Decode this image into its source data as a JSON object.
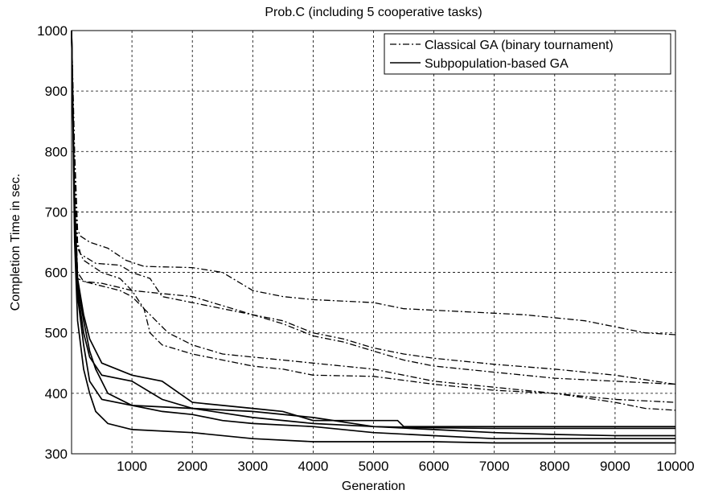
{
  "chart_data": {
    "type": "line",
    "title": "Prob.C (including 5 cooperative tasks)",
    "xlabel": "Generation",
    "ylabel": "Completion Time in sec.",
    "xlim": [
      0,
      10000
    ],
    "ylim": [
      300,
      1000
    ],
    "xticks": [
      1000,
      2000,
      3000,
      4000,
      5000,
      6000,
      7000,
      8000,
      9000,
      10000
    ],
    "yticks": [
      300,
      400,
      500,
      600,
      700,
      800,
      900,
      1000
    ],
    "grid": true,
    "legend_position": "top-right",
    "legend": [
      {
        "label": "Classical GA (binary tournament)",
        "style": "dashdot"
      },
      {
        "label": "Subpopulation-based GA",
        "style": "solid"
      }
    ],
    "series": [
      {
        "group": "Classical GA (binary tournament)",
        "style": "dashdot",
        "points": [
          [
            0,
            1000
          ],
          [
            50,
            800
          ],
          [
            100,
            670
          ],
          [
            150,
            660
          ],
          [
            300,
            650
          ],
          [
            600,
            640
          ],
          [
            900,
            620
          ],
          [
            1200,
            610
          ],
          [
            2000,
            608
          ],
          [
            2500,
            600
          ],
          [
            3000,
            570
          ],
          [
            3500,
            560
          ],
          [
            4000,
            555
          ],
          [
            5000,
            550
          ],
          [
            5500,
            540
          ],
          [
            6500,
            535
          ],
          [
            7500,
            530
          ],
          [
            8500,
            520
          ],
          [
            9500,
            500
          ],
          [
            10000,
            497
          ]
        ]
      },
      {
        "group": "Classical GA (binary tournament)",
        "style": "dashdot",
        "points": [
          [
            0,
            1000
          ],
          [
            50,
            780
          ],
          [
            100,
            650
          ],
          [
            150,
            630
          ],
          [
            400,
            615
          ],
          [
            800,
            612
          ],
          [
            1000,
            600
          ],
          [
            1300,
            590
          ],
          [
            1500,
            560
          ],
          [
            2000,
            550
          ],
          [
            2500,
            540
          ],
          [
            3000,
            530
          ],
          [
            3500,
            520
          ],
          [
            4000,
            500
          ],
          [
            4500,
            490
          ],
          [
            5000,
            475
          ],
          [
            5500,
            465
          ],
          [
            6000,
            458
          ],
          [
            7000,
            448
          ],
          [
            8000,
            440
          ],
          [
            9000,
            430
          ],
          [
            10000,
            415
          ]
        ]
      },
      {
        "group": "Classical GA (binary tournament)",
        "style": "dashdot",
        "points": [
          [
            0,
            1000
          ],
          [
            50,
            760
          ],
          [
            100,
            640
          ],
          [
            200,
            620
          ],
          [
            500,
            600
          ],
          [
            800,
            590
          ],
          [
            1000,
            570
          ],
          [
            1500,
            565
          ],
          [
            2000,
            560
          ],
          [
            2500,
            545
          ],
          [
            3000,
            530
          ],
          [
            3500,
            515
          ],
          [
            4000,
            495
          ],
          [
            4500,
            485
          ],
          [
            5000,
            470
          ],
          [
            5500,
            455
          ],
          [
            6000,
            445
          ],
          [
            7000,
            435
          ],
          [
            8000,
            425
          ],
          [
            9000,
            420
          ],
          [
            10000,
            415
          ]
        ]
      },
      {
        "group": "Classical GA (binary tournament)",
        "style": "dashdot",
        "points": [
          [
            0,
            1000
          ],
          [
            50,
            740
          ],
          [
            100,
            600
          ],
          [
            200,
            585
          ],
          [
            500,
            582
          ],
          [
            800,
            575
          ],
          [
            1000,
            570
          ],
          [
            1200,
            540
          ],
          [
            1300,
            500
          ],
          [
            1500,
            480
          ],
          [
            2000,
            465
          ],
          [
            2500,
            455
          ],
          [
            3000,
            445
          ],
          [
            3500,
            440
          ],
          [
            4000,
            430
          ],
          [
            5000,
            428
          ],
          [
            6000,
            415
          ],
          [
            7000,
            405
          ],
          [
            8000,
            400
          ],
          [
            9000,
            390
          ],
          [
            10000,
            385
          ]
        ]
      },
      {
        "group": "Classical GA (binary tournament)",
        "style": "dashdot",
        "points": [
          [
            0,
            1000
          ],
          [
            50,
            720
          ],
          [
            100,
            590
          ],
          [
            200,
            585
          ],
          [
            400,
            580
          ],
          [
            800,
            570
          ],
          [
            1000,
            560
          ],
          [
            1200,
            540
          ],
          [
            1400,
            520
          ],
          [
            1600,
            500
          ],
          [
            1800,
            490
          ],
          [
            2000,
            480
          ],
          [
            2500,
            465
          ],
          [
            3000,
            460
          ],
          [
            3500,
            455
          ],
          [
            4000,
            450
          ],
          [
            5000,
            440
          ],
          [
            6000,
            420
          ],
          [
            7000,
            410
          ],
          [
            8000,
            400
          ],
          [
            9000,
            385
          ],
          [
            9500,
            375
          ],
          [
            10000,
            372
          ]
        ]
      },
      {
        "group": "Subpopulation-based GA",
        "style": "solid",
        "points": [
          [
            0,
            1000
          ],
          [
            50,
            700
          ],
          [
            100,
            580
          ],
          [
            200,
            520
          ],
          [
            300,
            470
          ],
          [
            400,
            440
          ],
          [
            600,
            400
          ],
          [
            1000,
            380
          ],
          [
            2000,
            375
          ],
          [
            3000,
            370
          ],
          [
            4000,
            360
          ],
          [
            5000,
            345
          ],
          [
            6000,
            343
          ],
          [
            7000,
            342
          ],
          [
            8000,
            342
          ],
          [
            9000,
            342
          ],
          [
            10000,
            342
          ]
        ]
      },
      {
        "group": "Subpopulation-based GA",
        "style": "solid",
        "points": [
          [
            0,
            1000
          ],
          [
            50,
            720
          ],
          [
            100,
            590
          ],
          [
            200,
            530
          ],
          [
            300,
            490
          ],
          [
            500,
            450
          ],
          [
            1000,
            430
          ],
          [
            1500,
            420
          ],
          [
            2000,
            385
          ],
          [
            2500,
            380
          ],
          [
            3000,
            375
          ],
          [
            3500,
            370
          ],
          [
            4000,
            355
          ],
          [
            5000,
            355
          ],
          [
            5400,
            355
          ],
          [
            5500,
            345
          ],
          [
            6000,
            345
          ],
          [
            7000,
            345
          ],
          [
            8000,
            345
          ],
          [
            9000,
            345
          ],
          [
            10000,
            345
          ]
        ]
      },
      {
        "group": "Subpopulation-based GA",
        "style": "solid",
        "points": [
          [
            0,
            1000
          ],
          [
            50,
            690
          ],
          [
            100,
            570
          ],
          [
            200,
            500
          ],
          [
            300,
            460
          ],
          [
            500,
            430
          ],
          [
            1000,
            420
          ],
          [
            1500,
            390
          ],
          [
            2000,
            375
          ],
          [
            3000,
            360
          ],
          [
            4000,
            350
          ],
          [
            5000,
            345
          ],
          [
            6000,
            340
          ],
          [
            7000,
            335
          ],
          [
            8000,
            332
          ],
          [
            9000,
            330
          ],
          [
            10000,
            330
          ]
        ]
      },
      {
        "group": "Subpopulation-based GA",
        "style": "solid",
        "points": [
          [
            0,
            1000
          ],
          [
            50,
            680
          ],
          [
            100,
            560
          ],
          [
            200,
            480
          ],
          [
            300,
            420
          ],
          [
            500,
            390
          ],
          [
            1000,
            380
          ],
          [
            1500,
            370
          ],
          [
            2000,
            365
          ],
          [
            2500,
            355
          ],
          [
            3000,
            350
          ],
          [
            4000,
            345
          ],
          [
            5000,
            335
          ],
          [
            6000,
            330
          ],
          [
            7000,
            325
          ],
          [
            8000,
            325
          ],
          [
            9000,
            325
          ],
          [
            10000,
            325
          ]
        ]
      },
      {
        "group": "Subpopulation-based GA",
        "style": "solid",
        "points": [
          [
            0,
            1000
          ],
          [
            50,
            650
          ],
          [
            100,
            520
          ],
          [
            200,
            440
          ],
          [
            300,
            400
          ],
          [
            400,
            370
          ],
          [
            600,
            350
          ],
          [
            1000,
            340
          ],
          [
            2000,
            335
          ],
          [
            3000,
            325
          ],
          [
            4000,
            320
          ],
          [
            5000,
            320
          ],
          [
            6000,
            320
          ],
          [
            7000,
            318
          ],
          [
            8000,
            318
          ],
          [
            9000,
            318
          ],
          [
            10000,
            318
          ]
        ]
      }
    ]
  }
}
